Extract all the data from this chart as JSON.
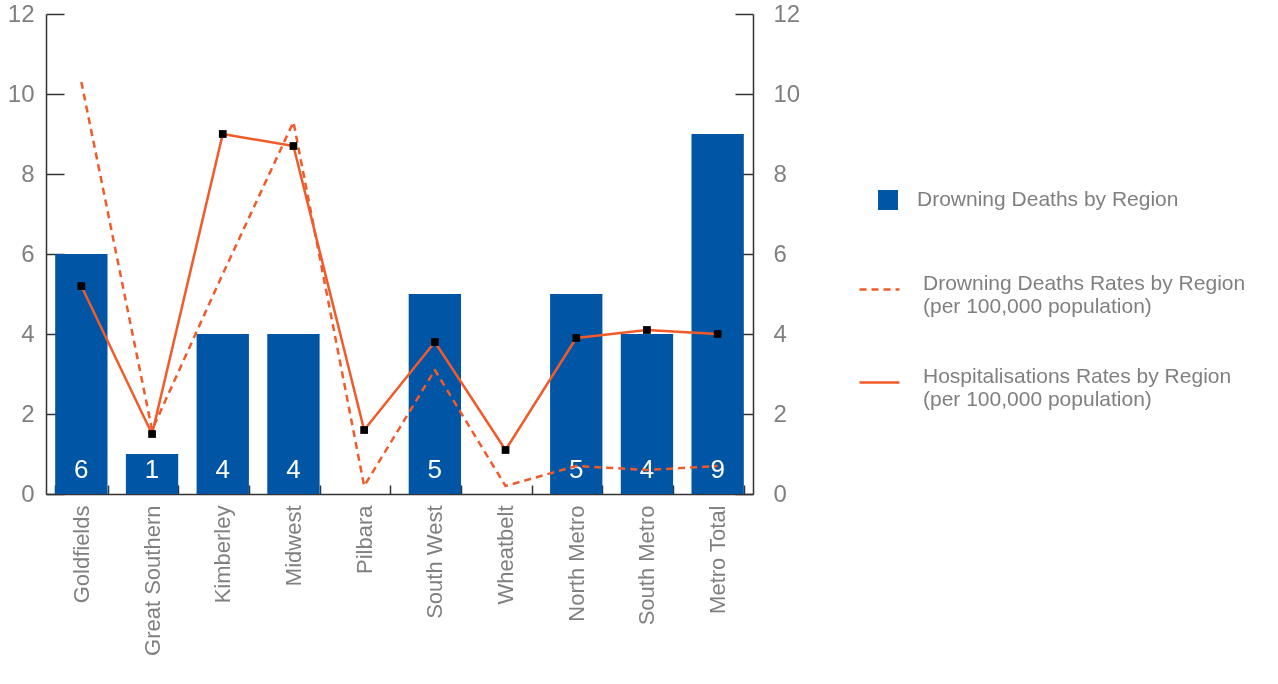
{
  "chart_data": {
    "type": "bar",
    "categories": [
      "Goldfields",
      "Great Southern",
      "Kimberley",
      "Midwest",
      "Pilbara",
      "South West",
      "Wheatbelt",
      "North Metro",
      "South Metro",
      "Metro Total"
    ],
    "series": [
      {
        "name": "Drowning Deaths by Region",
        "type": "bar",
        "color": "#0055a4",
        "values": [
          6,
          1,
          4,
          4,
          0,
          5,
          0,
          5,
          4,
          9
        ],
        "value_labels": [
          "6",
          "1",
          "4",
          "4",
          null,
          "5",
          null,
          "5",
          "4",
          "9"
        ]
      },
      {
        "name": "Drowning Deaths Rates by Region (per 100,000 population)",
        "type": "line",
        "axis": "y2",
        "color": "#f15a29",
        "line_style": "dashed",
        "marker": "none",
        "values": [
          10.3,
          1.6,
          5.5,
          9.3,
          0.2,
          3.1,
          0.2,
          0.7,
          0.6,
          0.7
        ]
      },
      {
        "name": "Hospitalisations Rates by Region (per 100,000 population)",
        "type": "line",
        "axis": "y2",
        "color": "#f15a29",
        "line_style": "solid",
        "marker": "square",
        "values": [
          5.2,
          1.5,
          9.0,
          8.7,
          1.6,
          3.8,
          1.1,
          3.9,
          4.1,
          4.0
        ]
      }
    ],
    "ylim": [
      0,
      12
    ],
    "yticks": [
      0,
      2,
      4,
      6,
      8,
      10,
      12
    ],
    "y2lim": [
      0,
      12
    ],
    "y2ticks": [
      0,
      2,
      4,
      6,
      8,
      10,
      12
    ],
    "legend": "right"
  }
}
